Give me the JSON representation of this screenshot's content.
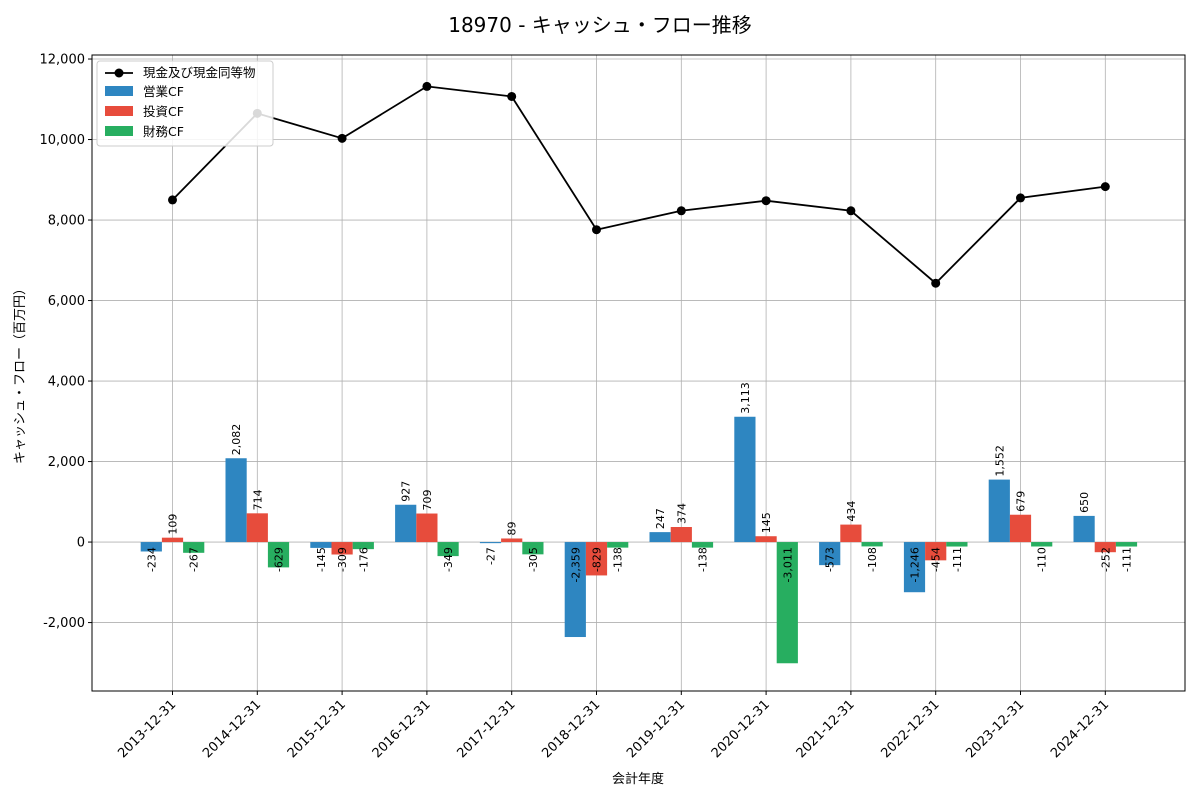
{
  "chart_data": {
    "type": "bar",
    "title": "18970 - キャッシュ・フロー推移",
    "xlabel": "会計年度",
    "ylabel": "キャッシュ・フロー（百万円）",
    "ylim": [
      -3700,
      12100
    ],
    "yticks": [
      -2000,
      0,
      2000,
      4000,
      6000,
      8000,
      10000,
      12000
    ],
    "ytick_labels": [
      "-2,000",
      "0",
      "2,000",
      "4,000",
      "6,000",
      "8,000",
      "10,000",
      "12,000"
    ],
    "grid": true,
    "legend_position": "top-left",
    "categories": [
      "2013-12-31",
      "2014-12-31",
      "2015-12-31",
      "2016-12-31",
      "2017-12-31",
      "2018-12-31",
      "2019-12-31",
      "2020-12-31",
      "2021-12-31",
      "2022-12-31",
      "2023-12-31",
      "2024-12-31"
    ],
    "series": [
      {
        "name": "営業CF",
        "type": "bar",
        "color": "#2e86c1",
        "values": [
          -234,
          2082,
          -145,
          927,
          -27,
          -2359,
          247,
          3113,
          -573,
          -1246,
          1552,
          650
        ]
      },
      {
        "name": "投資CF",
        "type": "bar",
        "color": "#e74c3c",
        "values": [
          109,
          714,
          -309,
          709,
          89,
          -829,
          374,
          145,
          434,
          -454,
          679,
          -252
        ]
      },
      {
        "name": "財務CF",
        "type": "bar",
        "color": "#27ae60",
        "values": [
          -267,
          -629,
          -176,
          -349,
          -305,
          -138,
          -138,
          -3011,
          -108,
          -111,
          -110,
          -111
        ]
      },
      {
        "name": "現金及び現金同等物",
        "type": "line",
        "color": "#000000",
        "values": [
          8500,
          10650,
          10030,
          11320,
          11070,
          7760,
          8230,
          8480,
          8230,
          6430,
          8550,
          8830
        ]
      }
    ]
  }
}
